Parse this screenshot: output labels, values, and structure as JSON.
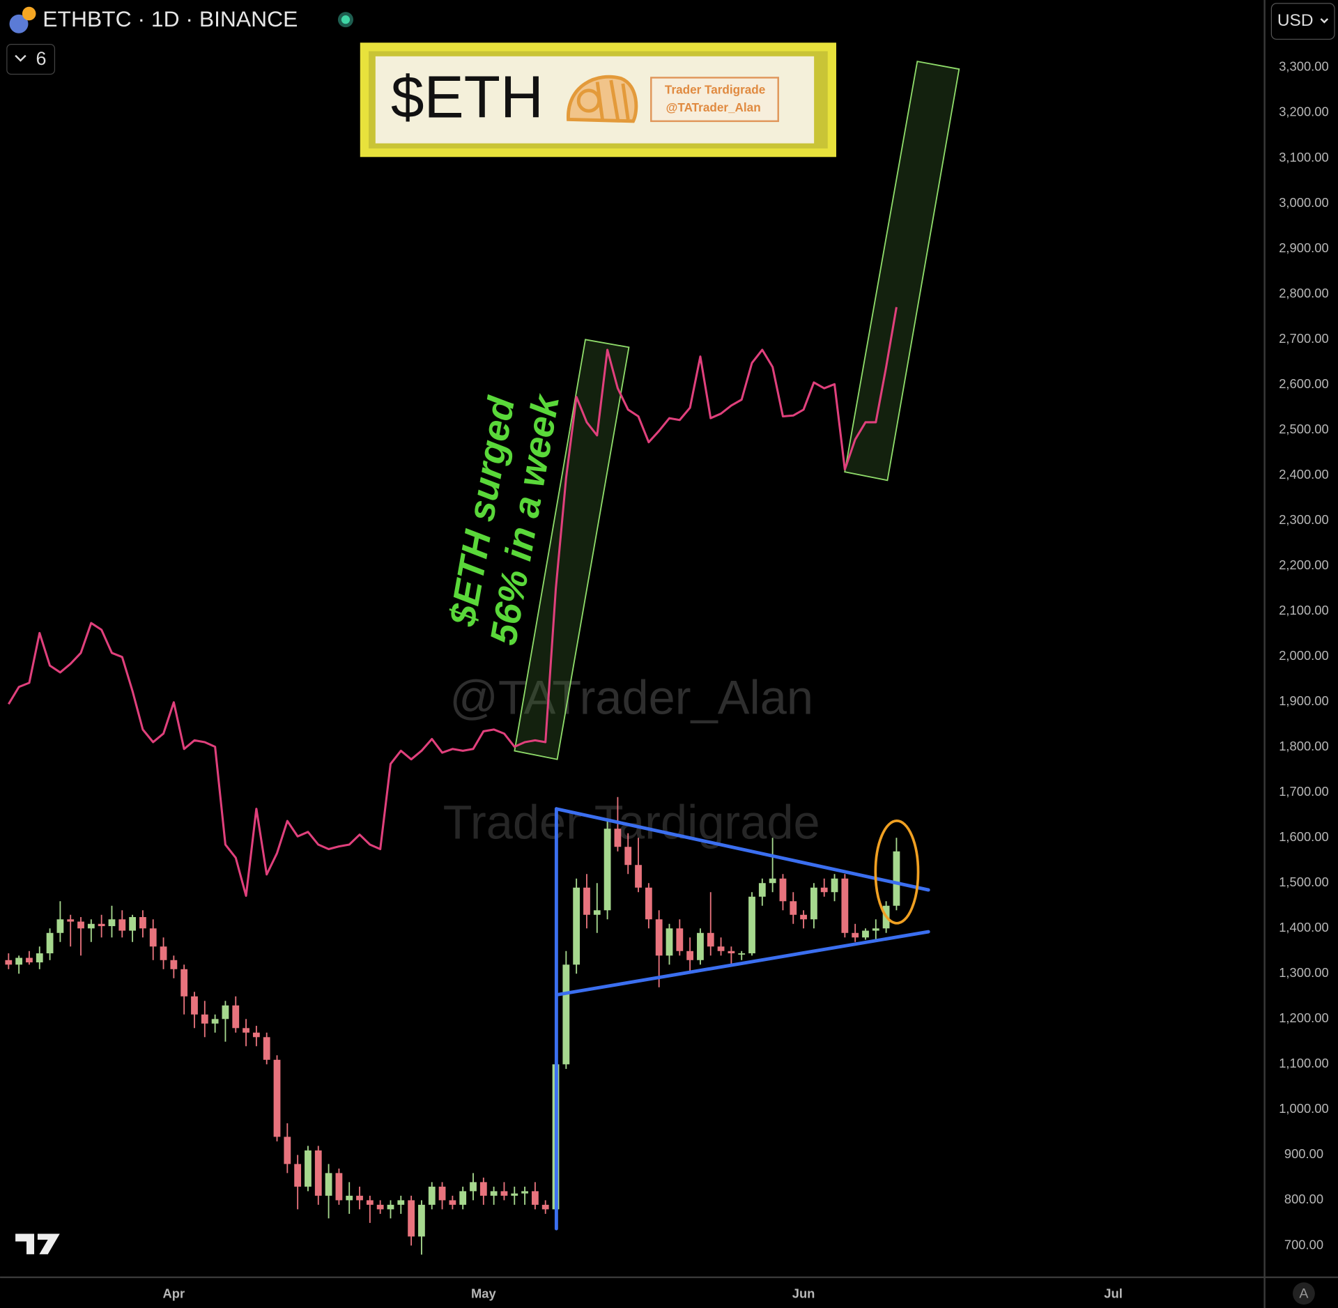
{
  "header": {
    "symbol": "ETHBTC · 1D · BINANCE",
    "interval_count": "6",
    "currency": "USD",
    "auto_button": "A"
  },
  "banner": {
    "title": "$ETH",
    "credit_name": "Trader Tardigrade",
    "credit_handle": "@TATrader_Alan"
  },
  "annotations": [
    "$ETH surged",
    "56% in a week"
  ],
  "watermarks": [
    "@TATrader_Alan",
    "Trader Tardigrade"
  ],
  "chart_data": [
    {
      "type": "line",
      "categories": [
        null,
        null,
        null,
        null,
        null,
        null,
        null,
        null,
        null,
        null,
        null,
        null,
        null,
        null,
        null,
        null,
        "Apr",
        null,
        null,
        null,
        null,
        null,
        null,
        null,
        null,
        null,
        null,
        null,
        null,
        null,
        null,
        null,
        null,
        null,
        null,
        null,
        null,
        null,
        null,
        null,
        null,
        null,
        null,
        null,
        null,
        null,
        "May",
        null,
        null,
        null,
        null,
        null,
        null,
        null,
        null,
        null,
        null,
        null,
        null,
        null,
        null,
        null,
        null,
        null,
        null,
        null,
        null,
        null,
        null,
        null,
        null,
        null,
        null,
        null,
        null,
        null,
        null,
        "Jun",
        null,
        null,
        null,
        null,
        null,
        null,
        null,
        null,
        null,
        null,
        null,
        null,
        null,
        null,
        null,
        null,
        null,
        null,
        null,
        null,
        null,
        null,
        null,
        null,
        null,
        null,
        null,
        null,
        null,
        "Jul"
      ],
      "values": [
        1895,
        1933,
        1942,
        2052,
        1980,
        1965,
        1984,
        2008,
        2074,
        2059,
        2008,
        1999,
        1924,
        1839,
        1811,
        1830,
        1899,
        1796,
        1815,
        1811,
        1801,
        1585,
        1556,
        1472,
        1664,
        1519,
        1566,
        1637,
        1603,
        1613,
        1585,
        1575,
        1581,
        1585,
        1607,
        1585,
        1575,
        1763,
        1792,
        1773,
        1792,
        1818,
        1788,
        1796,
        1792,
        1796,
        1835,
        1839,
        1830,
        1801,
        1811,
        1815,
        1811,
        2149,
        2394,
        2573,
        2517,
        2488,
        2677,
        2592,
        2545,
        2530,
        2473,
        2498,
        2526,
        2522,
        2549,
        2662,
        2526,
        2536,
        2554,
        2567,
        2648,
        2677,
        2639,
        2530,
        2532,
        2545,
        2605,
        2592,
        2601,
        2413,
        2479,
        2517,
        2517,
        2639,
        2771,
        null,
        null,
        null,
        null,
        null,
        null,
        null,
        null,
        null,
        null,
        null,
        null,
        null,
        null,
        null,
        null,
        null,
        null,
        null,
        null,
        null
      ],
      "color": "#e0407c",
      "ylim": [
        630,
        3449
      ],
      "yticks": [
        {
          "value": 700,
          "label": "700.00"
        },
        {
          "value": 800,
          "label": "800.00"
        },
        {
          "value": 900,
          "label": "900.00"
        },
        {
          "value": 1000,
          "label": "1,000.00"
        },
        {
          "value": 1100,
          "label": "1,100.00"
        },
        {
          "value": 1200,
          "label": "1,200.00"
        },
        {
          "value": 1300,
          "label": "1,300.00"
        },
        {
          "value": 1400,
          "label": "1,400.00"
        },
        {
          "value": 1500,
          "label": "1,500.00"
        },
        {
          "value": 1600,
          "label": "1,600.00"
        },
        {
          "value": 1700,
          "label": "1,700.00"
        },
        {
          "value": 1800,
          "label": "1,800.00"
        },
        {
          "value": 1900,
          "label": "1,900.00"
        },
        {
          "value": 2000,
          "label": "2,000.00"
        },
        {
          "value": 2100,
          "label": "2,100.00"
        },
        {
          "value": 2200,
          "label": "2,200.00"
        },
        {
          "value": 2300,
          "label": "2,300.00"
        },
        {
          "value": 2400,
          "label": "2,400.00"
        },
        {
          "value": 2500,
          "label": "2,500.00"
        },
        {
          "value": 2600,
          "label": "2,600.00"
        },
        {
          "value": 2700,
          "label": "2,700.00"
        },
        {
          "value": 2800,
          "label": "2,800.00"
        },
        {
          "value": 2900,
          "label": "2,900.00"
        },
        {
          "value": 3000,
          "label": "3,000.00"
        },
        {
          "value": 3100,
          "label": "3,100.00"
        },
        {
          "value": 3200,
          "label": "3,200.00"
        },
        {
          "value": 3300,
          "label": "3,300.00"
        }
      ]
    },
    {
      "type": "candlestick",
      "categories": [
        null,
        null,
        null,
        null,
        null,
        null,
        null,
        null,
        null,
        null,
        null,
        null,
        null,
        null,
        null,
        null,
        "Apr",
        null,
        null,
        null,
        null,
        null,
        null,
        null,
        null,
        null,
        null,
        null,
        null,
        null,
        null,
        null,
        null,
        null,
        null,
        null,
        null,
        null,
        null,
        null,
        null,
        null,
        null,
        null,
        null,
        null,
        "May",
        null,
        null,
        null,
        null,
        null,
        null,
        null,
        null,
        null,
        null,
        null,
        null,
        null,
        null,
        null,
        null,
        null,
        null,
        null,
        null,
        null,
        null,
        null,
        null,
        null,
        null,
        null,
        null,
        null,
        null,
        "Jun",
        null,
        null,
        null,
        null,
        null,
        null,
        null,
        null,
        null,
        null,
        null,
        null,
        null,
        null,
        null,
        null,
        null,
        null,
        null,
        null,
        null,
        null,
        null,
        null,
        null,
        null,
        null,
        null,
        null,
        "Jul"
      ],
      "open": [
        1330,
        1320,
        1335,
        1325,
        1345,
        1390,
        1420,
        1415,
        1400,
        1410,
        1405,
        1420,
        1395,
        1425,
        1400,
        1360,
        1330,
        1310,
        1250,
        1210,
        1190,
        1200,
        1230,
        1180,
        1170,
        1160,
        1110,
        940,
        880,
        830,
        910,
        810,
        860,
        800,
        810,
        800,
        790,
        780,
        790,
        800,
        720,
        790,
        830,
        800,
        790,
        820,
        840,
        810,
        820,
        810,
        815,
        820,
        790,
        780,
        1100,
        1320,
        1490,
        1430,
        1440,
        1620,
        1580,
        1540,
        1490,
        1420,
        1340,
        1400,
        1350,
        1330,
        1390,
        1360,
        1350,
        1345,
        1345,
        1470,
        1500,
        1510,
        1460,
        1430,
        1420,
        1490,
        1480,
        1510,
        1390,
        1380,
        1395,
        1400,
        1450,
        null,
        null,
        null,
        null,
        null,
        null,
        null,
        null,
        null,
        null,
        null,
        null,
        null,
        null,
        null,
        null,
        null,
        null,
        null,
        null,
        null
      ],
      "high": [
        1345,
        1340,
        1350,
        1360,
        1400,
        1460,
        1430,
        1425,
        1420,
        1430,
        1450,
        1440,
        1430,
        1440,
        1420,
        1380,
        1340,
        1320,
        1260,
        1240,
        1210,
        1240,
        1250,
        1200,
        1185,
        1170,
        1120,
        970,
        900,
        920,
        920,
        880,
        870,
        840,
        830,
        810,
        800,
        800,
        810,
        810,
        800,
        840,
        840,
        810,
        830,
        860,
        850,
        830,
        840,
        830,
        830,
        840,
        800,
        1120,
        1350,
        1510,
        1520,
        1500,
        1640,
        1690,
        1610,
        1600,
        1500,
        1440,
        1410,
        1420,
        1380,
        1400,
        1480,
        1380,
        1360,
        1350,
        1480,
        1510,
        1600,
        1520,
        1480,
        1440,
        1500,
        1510,
        1520,
        1520,
        1410,
        1400,
        1420,
        1460,
        1600,
        null,
        null,
        null,
        null,
        null,
        null,
        null,
        null,
        null,
        null,
        null,
        null,
        null,
        null,
        null,
        null,
        null,
        null,
        null,
        null,
        null
      ],
      "low": [
        1310,
        1300,
        1320,
        1310,
        1330,
        1370,
        1360,
        1340,
        1370,
        1380,
        1380,
        1380,
        1370,
        1380,
        1330,
        1310,
        1290,
        1210,
        1180,
        1160,
        1170,
        1150,
        1170,
        1140,
        1140,
        1100,
        930,
        860,
        780,
        820,
        790,
        760,
        790,
        770,
        780,
        750,
        770,
        760,
        770,
        700,
        680,
        780,
        780,
        780,
        780,
        800,
        790,
        790,
        800,
        790,
        790,
        780,
        770,
        770,
        1090,
        1300,
        1400,
        1390,
        1420,
        1570,
        1520,
        1480,
        1400,
        1270,
        1320,
        1340,
        1300,
        1320,
        1340,
        1340,
        1320,
        1330,
        1340,
        1450,
        1480,
        1440,
        1410,
        1400,
        1400,
        1470,
        1460,
        1380,
        1370,
        1375,
        1370,
        1390,
        1440,
        null,
        null,
        null,
        null,
        null,
        null,
        null,
        null,
        null,
        null,
        null,
        null,
        null,
        null,
        null,
        null,
        null,
        null,
        null,
        null,
        null
      ],
      "close": [
        1320,
        1335,
        1325,
        1345,
        1390,
        1420,
        1415,
        1400,
        1410,
        1405,
        1420,
        1395,
        1425,
        1400,
        1360,
        1330,
        1310,
        1250,
        1210,
        1190,
        1200,
        1230,
        1180,
        1170,
        1160,
        1110,
        940,
        880,
        830,
        910,
        810,
        860,
        800,
        810,
        800,
        790,
        780,
        790,
        800,
        720,
        790,
        830,
        800,
        790,
        820,
        840,
        810,
        820,
        810,
        815,
        820,
        790,
        780,
        1100,
        1320,
        1490,
        1430,
        1440,
        1620,
        1580,
        1540,
        1490,
        1420,
        1340,
        1400,
        1350,
        1330,
        1390,
        1360,
        1350,
        1345,
        1345,
        1470,
        1500,
        1510,
        1460,
        1430,
        1420,
        1490,
        1480,
        1510,
        1390,
        1380,
        1395,
        1400,
        1450,
        1570,
        null,
        null,
        null,
        null,
        null,
        null,
        null,
        null,
        null,
        null,
        null,
        null,
        null,
        null,
        null,
        null,
        null,
        null,
        null,
        null,
        null
      ],
      "up_color": "#a6d88e",
      "down_color": "#e8737d",
      "ylim": [
        630,
        3449
      ]
    }
  ]
}
